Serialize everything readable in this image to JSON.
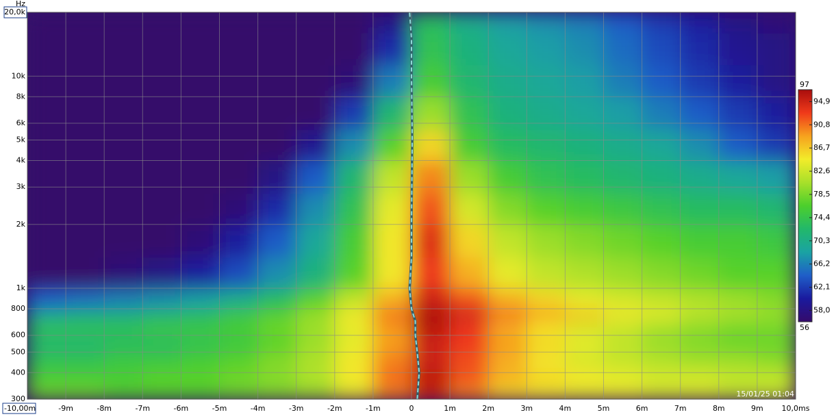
{
  "chart_data": {
    "type": "heatmap",
    "y_unit": "Hz",
    "timestamp": "15/01/25 01:04",
    "xlim": [
      -10,
      10
    ],
    "xticks": [
      {
        "value": -10,
        "label": "-10,00m"
      },
      {
        "value": -9,
        "label": "-9m"
      },
      {
        "value": -8,
        "label": "-8m"
      },
      {
        "value": -7,
        "label": "-7m"
      },
      {
        "value": -6,
        "label": "-6m"
      },
      {
        "value": -5,
        "label": "-5m"
      },
      {
        "value": -4,
        "label": "-4m"
      },
      {
        "value": -3,
        "label": "-3m"
      },
      {
        "value": -2,
        "label": "-2m"
      },
      {
        "value": -1,
        "label": "-1m"
      },
      0,
      {
        "value": 1,
        "label": "1m"
      },
      {
        "value": 2,
        "label": "2m"
      },
      {
        "value": 3,
        "label": "3m"
      },
      {
        "value": 4,
        "label": "4m"
      },
      {
        "value": 5,
        "label": "5m"
      },
      {
        "value": 6,
        "label": "6m"
      },
      {
        "value": 7,
        "label": "7m"
      },
      {
        "value": 8,
        "label": "8m"
      },
      {
        "value": 9,
        "label": "9m"
      },
      {
        "value": 10,
        "label": "10,0ms"
      }
    ],
    "ylim": [
      300,
      20000
    ],
    "log_y": true,
    "yticks": [
      300,
      400,
      500,
      600,
      800,
      {
        "value": 1000,
        "label": "1k"
      },
      {
        "value": 2000,
        "label": "2k"
      },
      {
        "value": 3000,
        "label": "3k"
      },
      {
        "value": 4000,
        "label": "4k"
      },
      {
        "value": 5000,
        "label": "5k"
      },
      {
        "value": 6000,
        "label": "6k"
      },
      {
        "value": 8000,
        "label": "8k"
      },
      {
        "value": 10000,
        "label": "10k"
      },
      {
        "value": 20000,
        "label": "20,0k"
      }
    ],
    "zlim": [
      56,
      97
    ],
    "zticks": [
      97,
      {
        "value": 94.9,
        "label": "94,9"
      },
      {
        "value": 90.8,
        "label": "90,8"
      },
      {
        "value": 86.7,
        "label": "86,7"
      },
      {
        "value": 82.6,
        "label": "82,6"
      },
      {
        "value": 78.5,
        "label": "78,5"
      },
      {
        "value": 74.4,
        "label": "74,4"
      },
      {
        "value": 70.3,
        "label": "70,3"
      },
      {
        "value": 66.2,
        "label": "66,2"
      },
      {
        "value": 62.1,
        "label": "62,1"
      },
      {
        "value": 58.0,
        "label": "58,0"
      },
      56
    ],
    "colormap": [
      "#350b6b",
      "#1a1a9e",
      "#1f5fc8",
      "#1aa3a3",
      "#22b86a",
      "#4ccf2c",
      "#a8e02a",
      "#f2ec2a",
      "#f6a21e",
      "#f03a1a",
      "#a80d0d"
    ],
    "grid": true,
    "x_edges": [
      -10,
      -9,
      -8,
      -7,
      -6,
      -5,
      -4,
      -3,
      -2,
      -1,
      0,
      1,
      2,
      3,
      4,
      5,
      6,
      7,
      8,
      9,
      10
    ],
    "y_edges": [
      300,
      350,
      420,
      500,
      600,
      700,
      800,
      1000,
      1400,
      2000,
      2800,
      4000,
      5600,
      8000,
      11300,
      16000,
      20000
    ],
    "z": [
      [
        78,
        78,
        77,
        77,
        77,
        78,
        79,
        80,
        84,
        90,
        95,
        90,
        86,
        85,
        84,
        84,
        83,
        83,
        82,
        82
      ],
      [
        76,
        76,
        76,
        77,
        77,
        78,
        79,
        81,
        85,
        91,
        96,
        92,
        88,
        86,
        85,
        84,
        83,
        83,
        82,
        82
      ],
      [
        74,
        74,
        75,
        75,
        76,
        77,
        79,
        81,
        85,
        90,
        95,
        92,
        88,
        85,
        83,
        82,
        81,
        80,
        80,
        79
      ],
      [
        72,
        72,
        73,
        73,
        74,
        75,
        77,
        80,
        84,
        89,
        95,
        93,
        89,
        86,
        84,
        82,
        80,
        79,
        78,
        78
      ],
      [
        74,
        74,
        74,
        75,
        75,
        76,
        78,
        80,
        84,
        89,
        96,
        93,
        88,
        85,
        83,
        82,
        80,
        79,
        78,
        78
      ],
      [
        70,
        71,
        71,
        72,
        73,
        75,
        77,
        80,
        85,
        91,
        97,
        95,
        91,
        89,
        87,
        85,
        84,
        82,
        81,
        80
      ],
      [
        64,
        65,
        66,
        67,
        68,
        70,
        73,
        77,
        82,
        88,
        95,
        92,
        88,
        86,
        84,
        83,
        82,
        81,
        80,
        79
      ],
      [
        56,
        56,
        57,
        58,
        60,
        63,
        67,
        71,
        77,
        85,
        93,
        88,
        84,
        82,
        81,
        80,
        79,
        78,
        77,
        77
      ],
      [
        56,
        56,
        56,
        56,
        57,
        60,
        64,
        69,
        76,
        85,
        94,
        86,
        82,
        80,
        79,
        78,
        77,
        76,
        76,
        75
      ],
      [
        56,
        56,
        56,
        56,
        56,
        57,
        61,
        67,
        74,
        84,
        92,
        83,
        79,
        77,
        76,
        75,
        74,
        73,
        73,
        72
      ],
      [
        56,
        56,
        56,
        56,
        56,
        56,
        58,
        64,
        72,
        82,
        90,
        80,
        76,
        74,
        73,
        72,
        71,
        70,
        69,
        68
      ],
      [
        56,
        56,
        56,
        56,
        56,
        56,
        56,
        59,
        67,
        77,
        86,
        76,
        73,
        72,
        71,
        70,
        69,
        67,
        64,
        62
      ],
      [
        56,
        56,
        56,
        56,
        56,
        56,
        56,
        56,
        62,
        72,
        80,
        74,
        71,
        70,
        69,
        68,
        66,
        64,
        62,
        60
      ],
      [
        56,
        56,
        56,
        56,
        56,
        56,
        56,
        56,
        57,
        66,
        76,
        72,
        70,
        69,
        68,
        66,
        64,
        62,
        60,
        58
      ],
      [
        56,
        56,
        56,
        56,
        56,
        56,
        56,
        56,
        56,
        61,
        74,
        71,
        69,
        68,
        67,
        65,
        63,
        61,
        59,
        58
      ],
      [
        56,
        56,
        56,
        56,
        56,
        56,
        56,
        56,
        56,
        58,
        73,
        70,
        68,
        67,
        66,
        64,
        62,
        60,
        58,
        57
      ]
    ],
    "ridge": {
      "color": "#8fd8d8",
      "x": [
        0.15,
        0.2,
        0.15,
        0.1,
        0.1,
        0.0,
        -0.05,
        0.0,
        0.0,
        0.02,
        0.0,
        0.0,
        -0.05
      ],
      "y": [
        300,
        400,
        500,
        600,
        700,
        800,
        1000,
        1400,
        2000,
        5000,
        10000,
        15000,
        20000
      ]
    }
  }
}
